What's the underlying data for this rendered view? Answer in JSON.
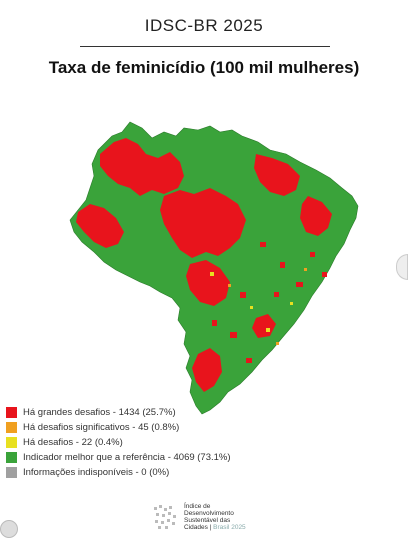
{
  "header": {
    "title": "IDSC-BR 2025",
    "subtitle": "Taxa de feminicídio (100 mil mulheres)"
  },
  "map": {
    "region": "Brasil",
    "colors": {
      "red": "#e8141c",
      "orange": "#f0a020",
      "yellow": "#e8e020",
      "green": "#3aa33a",
      "gray": "#a0a0a0"
    }
  },
  "legend": {
    "items": [
      {
        "label": "Há grandes desafios - 1434 (25.7%)",
        "color": "#e8141c"
      },
      {
        "label": "Há desafios significativos - 45 (0.8%)",
        "color": "#f0a020"
      },
      {
        "label": "Há desafios - 22 (0.4%)",
        "color": "#e8e020"
      },
      {
        "label": "Indicador melhor que a referência - 4069 (73.1%)",
        "color": "#3aa33a"
      },
      {
        "label": "Informações indisponíveis - 0 (0%)",
        "color": "#a0a0a0"
      }
    ]
  },
  "footer": {
    "logo_line1": "Índice de",
    "logo_line2": "Desenvolvimento",
    "logo_line3": "Sustentável das",
    "logo_line4": "Cidades | ",
    "logo_year": "Brasil 2025",
    "logo_icon": "idsc-logo-icon"
  }
}
